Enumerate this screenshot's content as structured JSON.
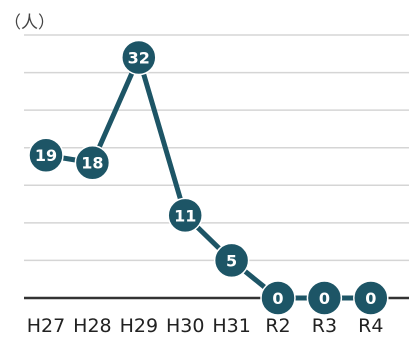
{
  "colors": {
    "series": "#1d5566",
    "gridline": "#d5d5d5",
    "baseline": "#333333",
    "marker_text": "#ffffff"
  },
  "chart_data": {
    "type": "line",
    "title": "",
    "xlabel": "",
    "ylabel": "",
    "y_unit_label": "（人）",
    "categories": [
      "H27",
      "H28",
      "H29",
      "H30",
      "H31",
      "R2",
      "R3",
      "R4"
    ],
    "series": [
      {
        "values": [
          19,
          18,
          32,
          11,
          5,
          0,
          0,
          0
        ]
      }
    ],
    "ylim": [
      0,
      35
    ],
    "grid": true,
    "data_labels": true,
    "legend": "none"
  }
}
